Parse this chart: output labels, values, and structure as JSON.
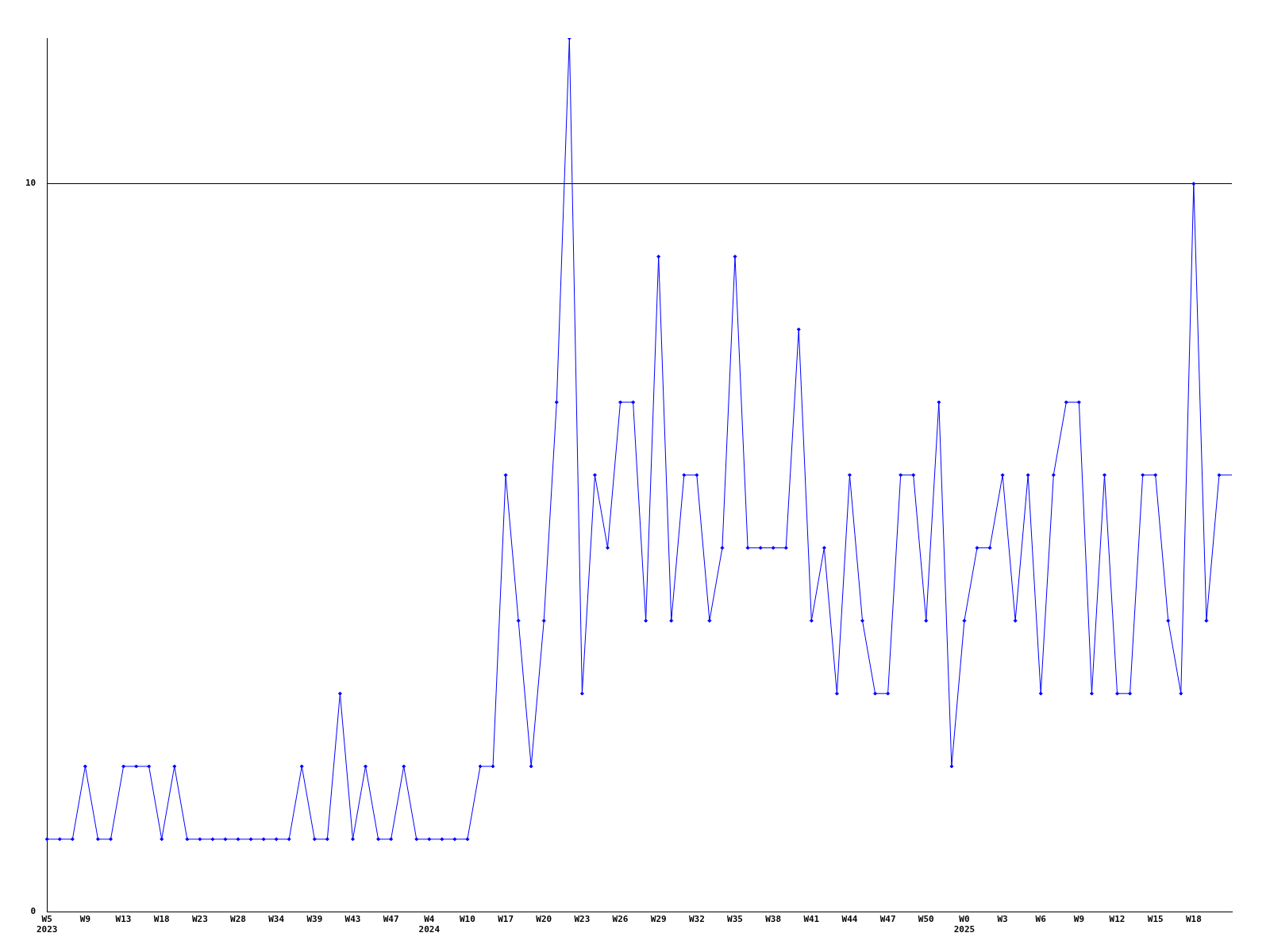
{
  "chart_data": {
    "type": "line",
    "categories": [
      "W5\n2023",
      null,
      null,
      "W9",
      null,
      null,
      "W13",
      null,
      null,
      "W18",
      null,
      null,
      "W23",
      null,
      null,
      "W28",
      null,
      null,
      "W34",
      null,
      null,
      "W39",
      null,
      null,
      "W43",
      null,
      null,
      "W47",
      null,
      null,
      "W4\n2024",
      null,
      null,
      "W10",
      null,
      null,
      "W17",
      null,
      null,
      "W20",
      null,
      null,
      "W23",
      null,
      null,
      "W26",
      null,
      null,
      "W29",
      null,
      null,
      "W32",
      null,
      null,
      "W35",
      null,
      null,
      "W38",
      null,
      null,
      "W41",
      null,
      null,
      "W44",
      null,
      null,
      "W47",
      null,
      null,
      "W50",
      null,
      null,
      "W0\n2025",
      null,
      null,
      "W3",
      null,
      null,
      "W6",
      null,
      null,
      "W9",
      null,
      null,
      "W12",
      null,
      null,
      "W15",
      null,
      null,
      "W18",
      null,
      null,
      null
    ],
    "series": [
      {
        "color": "#0000ff",
        "values": [
          1,
          1,
          1,
          2,
          1,
          1,
          2,
          2,
          2,
          1,
          2,
          1,
          1,
          1,
          1,
          1,
          1,
          1,
          1,
          1,
          2,
          1,
          1,
          3,
          1,
          2,
          1,
          1,
          2,
          1,
          1,
          1,
          1,
          1,
          2,
          2,
          6,
          4,
          2,
          4,
          7,
          12,
          3,
          6,
          5,
          7,
          7,
          4,
          9,
          4,
          6,
          6,
          4,
          5,
          9,
          5,
          5,
          5,
          5,
          8,
          4,
          5,
          3,
          6,
          4,
          3,
          3,
          6,
          6,
          4,
          7,
          2,
          4,
          5,
          5,
          6,
          4,
          6,
          3,
          6,
          7,
          7,
          3,
          6,
          3,
          3,
          6,
          6,
          4,
          3,
          10,
          4,
          6,
          6
        ]
      }
    ],
    "ylim": [
      0,
      12
    ],
    "yticks": [
      0,
      10
    ],
    "grid": "y",
    "marker": "diamond",
    "line_style": "solid",
    "legend": false
  }
}
